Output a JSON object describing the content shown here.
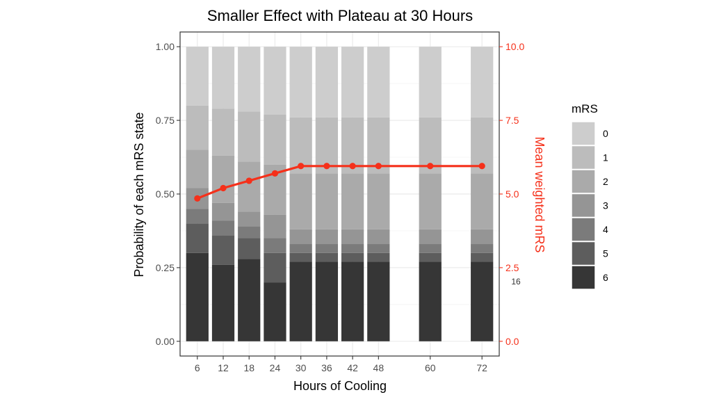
{
  "chart_data": {
    "type": "bar",
    "subtype": "stacked-bar-with-secondary-line",
    "title": "Smaller Effect with Plateau at 30 Hours",
    "xlabel": "Hours of Cooling",
    "ylabel": "Probability of each mRS state",
    "y2label": "Mean weighted mRS",
    "xlim": [
      2,
      76
    ],
    "ylim": [
      -0.05,
      1.05
    ],
    "y2lim": [
      -0.5,
      10.5
    ],
    "x_ticks": [
      6,
      12,
      18,
      24,
      30,
      36,
      42,
      48,
      60,
      72
    ],
    "y_ticks": [
      0.0,
      0.25,
      0.5,
      0.75,
      1.0
    ],
    "y_tick_labels": [
      "0.00",
      "0.25",
      "0.50",
      "0.75",
      "1.00"
    ],
    "y2_ticks": [
      0.0,
      2.5,
      5.0,
      7.5,
      10.0
    ],
    "y2_tick_labels": [
      "0.0",
      "2.5",
      "5.0",
      "7.5",
      "10.0"
    ],
    "categories": [
      6,
      12,
      18,
      24,
      30,
      36,
      42,
      48,
      60,
      72
    ],
    "bar_width_hours": 5.2,
    "legend": {
      "title": "mRS",
      "position": "right",
      "entries": [
        "0",
        "1",
        "2",
        "3",
        "4",
        "5",
        "6"
      ]
    },
    "stack_order_bottom_to_top": [
      "6",
      "5",
      "4",
      "3",
      "2",
      "1",
      "0"
    ],
    "series": [
      {
        "name": "6",
        "color": "#363636",
        "values": [
          0.3,
          0.26,
          0.28,
          0.2,
          0.27,
          0.27,
          0.27,
          0.27,
          0.27,
          0.27
        ]
      },
      {
        "name": "5",
        "color": "#5d5d5d",
        "values": [
          0.1,
          0.1,
          0.07,
          0.1,
          0.03,
          0.03,
          0.03,
          0.03,
          0.03,
          0.03
        ]
      },
      {
        "name": "4",
        "color": "#7b7b7b",
        "values": [
          0.05,
          0.05,
          0.04,
          0.05,
          0.03,
          0.03,
          0.03,
          0.03,
          0.03,
          0.03
        ]
      },
      {
        "name": "3",
        "color": "#959595",
        "values": [
          0.07,
          0.06,
          0.05,
          0.08,
          0.05,
          0.05,
          0.05,
          0.05,
          0.05,
          0.05
        ]
      },
      {
        "name": "2",
        "color": "#aaaaaa",
        "values": [
          0.13,
          0.16,
          0.17,
          0.17,
          0.19,
          0.19,
          0.19,
          0.19,
          0.19,
          0.19
        ]
      },
      {
        "name": "1",
        "color": "#bcbcbc",
        "values": [
          0.15,
          0.16,
          0.17,
          0.17,
          0.19,
          0.19,
          0.19,
          0.19,
          0.19,
          0.19
        ]
      },
      {
        "name": "0",
        "color": "#cdcdcd",
        "values": [
          0.2,
          0.21,
          0.22,
          0.23,
          0.24,
          0.24,
          0.24,
          0.24,
          0.24,
          0.24
        ]
      }
    ],
    "line": {
      "name": "Mean weighted mRS",
      "axis": "secondary",
      "color": "#f5301a",
      "x": [
        6,
        12,
        18,
        24,
        30,
        36,
        42,
        48,
        60,
        72
      ],
      "y": [
        4.85,
        5.2,
        5.45,
        5.7,
        5.95,
        5.95,
        5.95,
        5.95,
        5.95,
        5.95
      ]
    },
    "annotations": [
      {
        "text": "16",
        "x": 72,
        "y2": 2.0
      }
    ],
    "grid": true,
    "theme": "bw"
  }
}
